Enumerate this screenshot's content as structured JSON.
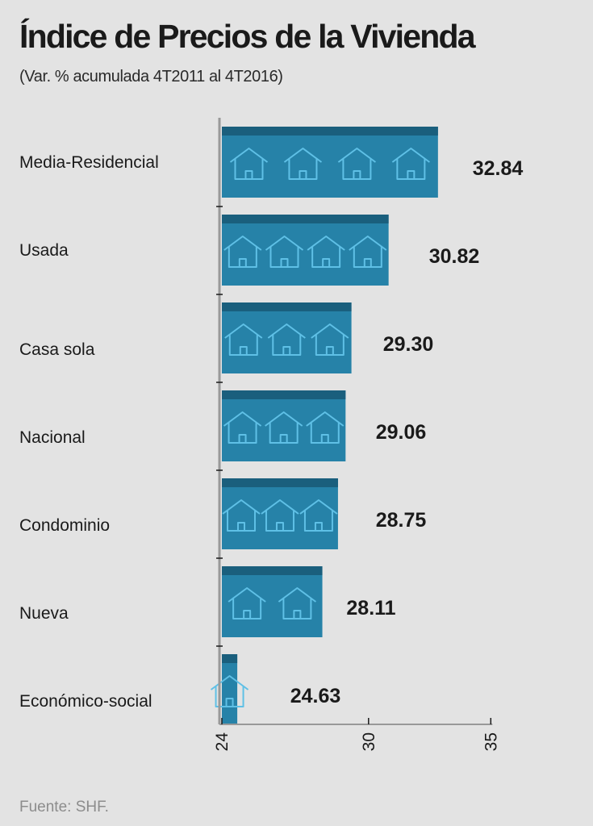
{
  "title": "Índice de Precios de la Vivienda",
  "subtitle": "(Var. % acumulada 4T2011 al 4T2016)",
  "source": "Fuente: SHF.",
  "colors": {
    "background": "#e3e3e3",
    "bar": "#2682a8",
    "bar_top": "#1a5f7d",
    "house_outline": "#5fc0e6",
    "axis": "#999999"
  },
  "chart_data": {
    "type": "bar",
    "orientation": "horizontal",
    "categories": [
      "Media-Residencial",
      "Usada",
      "Casa sola",
      "Nacional",
      "Condominio",
      "Nueva",
      "Económico-social"
    ],
    "values": [
      32.84,
      30.82,
      29.3,
      29.06,
      28.75,
      28.11,
      24.63
    ],
    "value_labels": [
      "32.84",
      "30.82",
      "29.30",
      "29.06",
      "28.75",
      "28.11",
      "24.63"
    ],
    "house_icons": [
      4,
      4,
      3,
      3,
      3,
      2,
      1
    ],
    "icon_name": "house-icon",
    "xlim": [
      24,
      35
    ],
    "xticks": [
      "24",
      "30",
      "35"
    ],
    "xlabel": "",
    "ylabel": "",
    "grid": false,
    "legend": "none"
  }
}
